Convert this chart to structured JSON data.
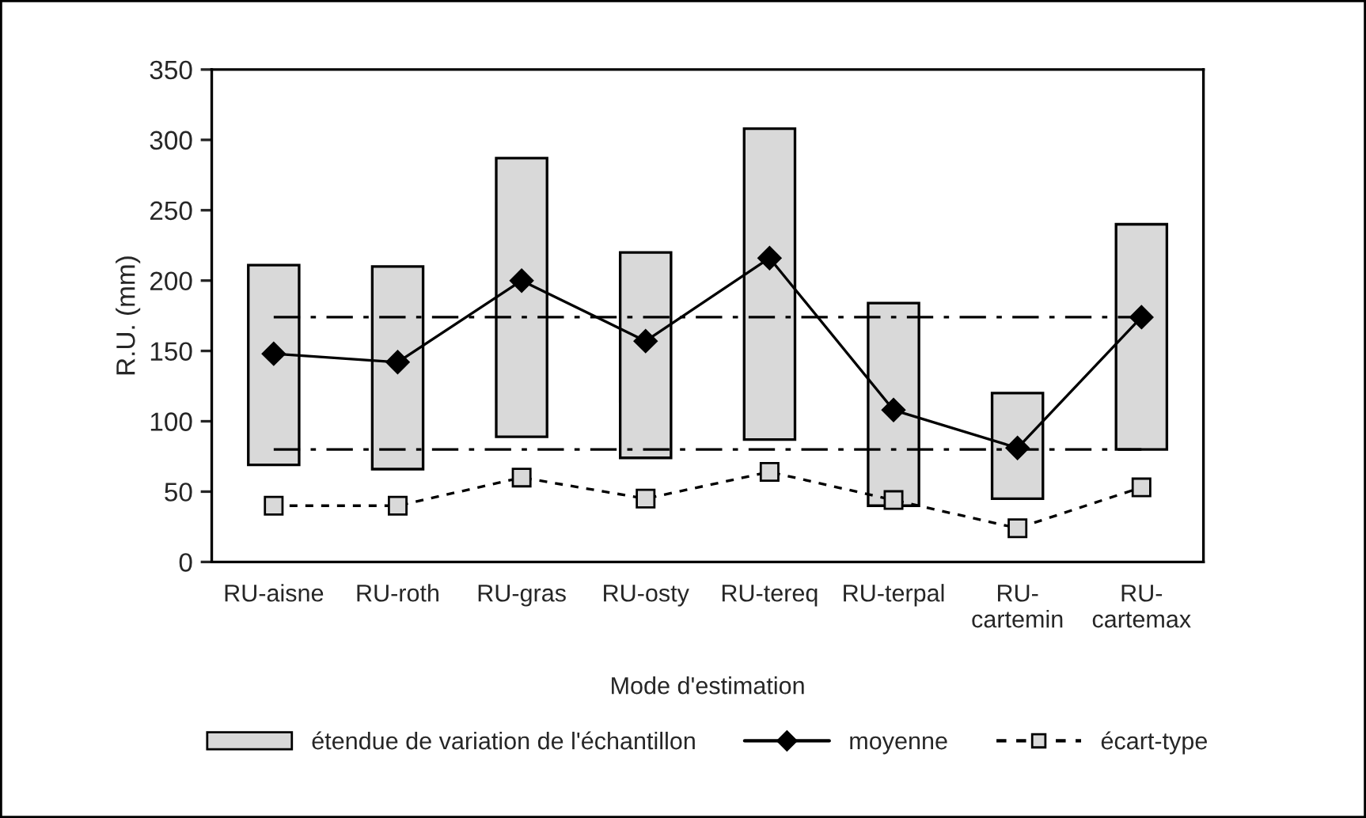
{
  "chart_data": {
    "type": "bar",
    "xlabel": "Mode d'estimation",
    "ylabel": "R.U. (mm)",
    "categories": [
      "RU-aisne",
      "RU-roth",
      "RU-gras",
      "RU-osty",
      "RU-tereq",
      "RU-terpal",
      "RU-\ncartemin",
      "RU-\ncartemax"
    ],
    "series": [
      {
        "name": "étendue de variation de l'échantillon",
        "color": "#d9d9d9",
        "base": [
          69,
          66,
          89,
          74,
          87,
          40,
          45,
          80
        ],
        "values": [
          142,
          144,
          198,
          146,
          221,
          144,
          75,
          160
        ]
      },
      {
        "name": "moyenne",
        "type": "line",
        "color": "#000000",
        "marker": "diamond",
        "line_style": "solid",
        "values": [
          148,
          142,
          200,
          157,
          216,
          108,
          81,
          174
        ]
      },
      {
        "name": "écart-type",
        "type": "line",
        "color": "#000000",
        "marker": "square",
        "line_style": "dashed",
        "values": [
          40,
          40,
          60,
          45,
          64,
          44,
          24,
          53
        ]
      }
    ],
    "ref_lines": [
      {
        "axis": "y",
        "value": 174,
        "line_style": "dashdot",
        "color": "#000000"
      },
      {
        "axis": "y",
        "value": 80,
        "line_style": "dashdot",
        "color": "#000000"
      }
    ],
    "ylim": [
      0,
      350
    ],
    "yticks": [
      0,
      50,
      100,
      150,
      200,
      250,
      300,
      350
    ],
    "grid": false,
    "legend": "bottom"
  }
}
